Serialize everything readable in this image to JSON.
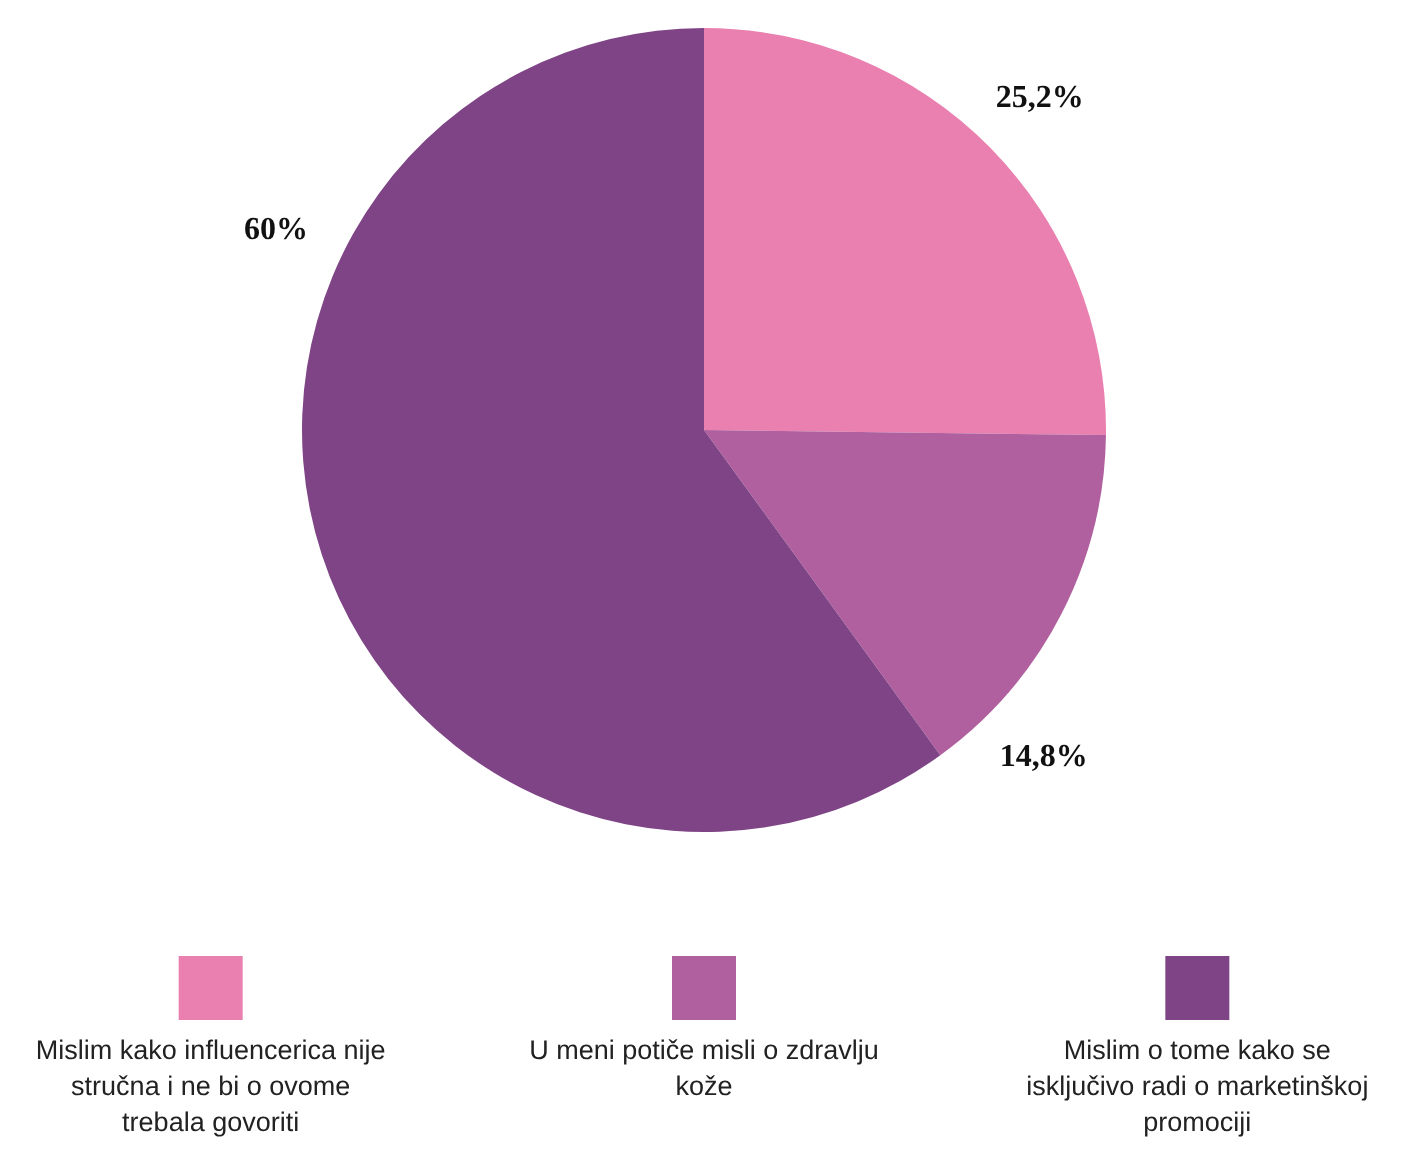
{
  "chart_data": {
    "type": "pie",
    "categories": [
      "Mislim kako influencerica nije stručna i ne bi o ovome trebala govoriti",
      "U meni potiče misli o zdravlju kože",
      "Mislim o tome kako se isključivo radi o marketinškoj promociji"
    ],
    "values": [
      25.2,
      14.8,
      60
    ],
    "colors": [
      "#ea80b0",
      "#b0609e",
      "#7f4486"
    ],
    "value_labels": [
      "25,2%",
      "14,8%",
      "60%"
    ],
    "legend": "bottom"
  }
}
